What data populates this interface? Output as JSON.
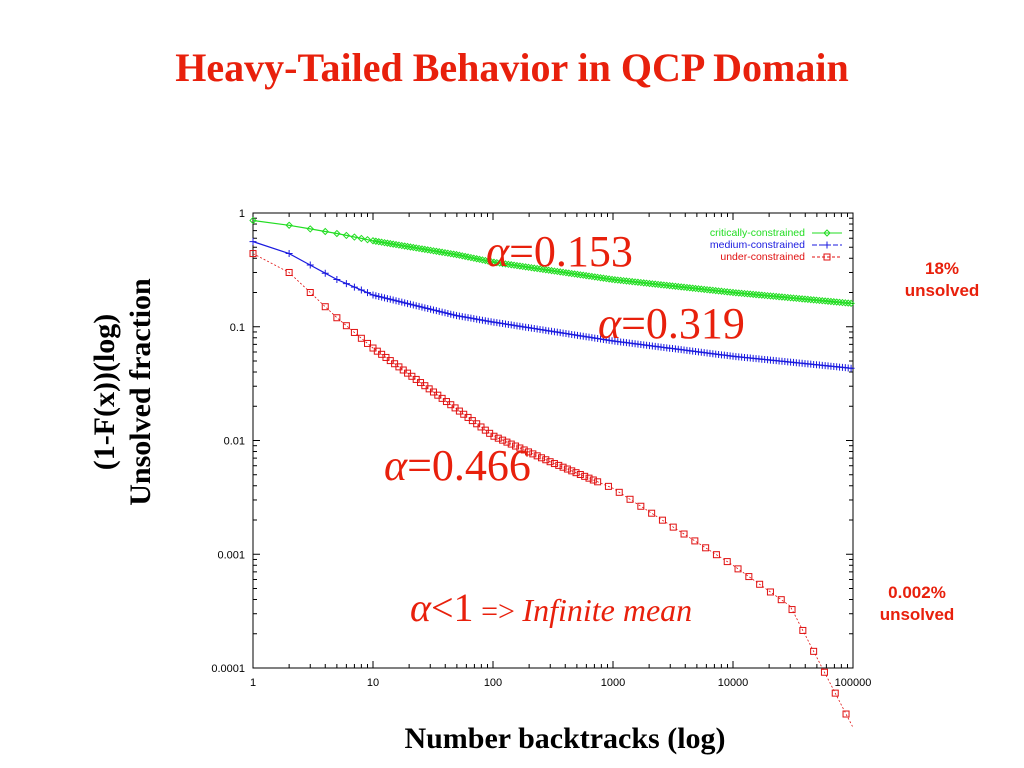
{
  "slide": {
    "title": "Heavy-Tailed Behavior  in QCP Domain",
    "ylabel_line1": "(1-F(x))(log)",
    "ylabel_line2": "Unsolved fraction",
    "xlabel": "Number backtracks (log)"
  },
  "annotations": {
    "alpha_symbol": "α",
    "alpha_critical": "=0.153",
    "alpha_medium": "=0.319",
    "alpha_under": "=0.466",
    "infinite_value": "<1",
    "infinite_arrow": " => ",
    "infinite_text": "Infinite mean",
    "note_top_line1": "18%",
    "note_top_line2": "unsolved",
    "note_bottom_line1": "0.002%",
    "note_bottom_line2": "unsolved"
  },
  "chart_data": {
    "type": "line",
    "x_scale": "log",
    "y_scale": "log",
    "xlim": [
      1,
      100000
    ],
    "ylim": [
      0.0001,
      1
    ],
    "x_ticks": [
      "1",
      "10",
      "100",
      "1000",
      "10000",
      "100000"
    ],
    "y_ticks": [
      "1",
      "0.1",
      "0.01",
      "0.001",
      "0.0001"
    ],
    "legend_position": "top-right",
    "series": [
      {
        "name": "critically-constrained",
        "color": "#22dd22",
        "marker": "diamond",
        "x": [
          1,
          2,
          5,
          10,
          50,
          100,
          1000,
          10000,
          100000
        ],
        "y": [
          0.86,
          0.78,
          0.66,
          0.57,
          0.43,
          0.37,
          0.26,
          0.2,
          0.16
        ]
      },
      {
        "name": "medium-constrained",
        "color": "#1a1adf",
        "marker": "plus",
        "x": [
          1,
          2,
          5,
          10,
          50,
          100,
          1000,
          10000,
          100000
        ],
        "y": [
          0.56,
          0.44,
          0.26,
          0.19,
          0.125,
          0.11,
          0.075,
          0.055,
          0.043
        ]
      },
      {
        "name": "under-constrained",
        "color": "#e01010",
        "marker": "square",
        "x": [
          1,
          2,
          5,
          10,
          30,
          100,
          300,
          1000,
          3000,
          10000,
          30000,
          100000
        ],
        "y": [
          0.44,
          0.3,
          0.12,
          0.065,
          0.028,
          0.011,
          0.0065,
          0.0038,
          0.0018,
          0.0008,
          0.00035,
          3e-05
        ]
      }
    ]
  }
}
